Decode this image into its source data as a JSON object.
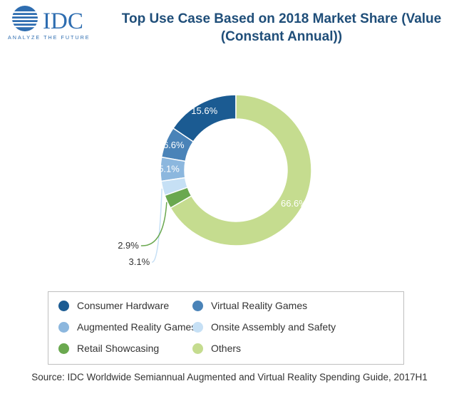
{
  "logo": {
    "text": "IDC",
    "tagline": "ANALYZE THE FUTURE"
  },
  "title_lines": [
    "Top Use Case Based on 2018 Market Share (Value",
    "(Constant Annual))"
  ],
  "source": "Source: IDC Worldwide Semiannual Augmented and Virtual Reality Spending Guide, 2017H1",
  "chart_data": {
    "type": "pie",
    "title": "Top Use Case Based on 2018 Market Share (Value (Constant Annual))",
    "donut": true,
    "legend_position": "bottom",
    "categories": [
      "Consumer Hardware",
      "Virtual Reality Games",
      "Augmented Reality Games",
      "Onsite Assembly and Safety",
      "Retail Showcasing",
      "Others"
    ],
    "values": [
      15.6,
      6.6,
      5.1,
      3.1,
      2.9,
      66.6
    ],
    "labels": [
      "15.6%",
      "6.6%",
      "5.1%",
      "3.1%",
      "2.9%",
      "66.6%"
    ],
    "colors": [
      "#1b5b92",
      "#4a83b8",
      "#8cb7de",
      "#c6e0f5",
      "#6aa84f",
      "#c5dc8f"
    ]
  }
}
